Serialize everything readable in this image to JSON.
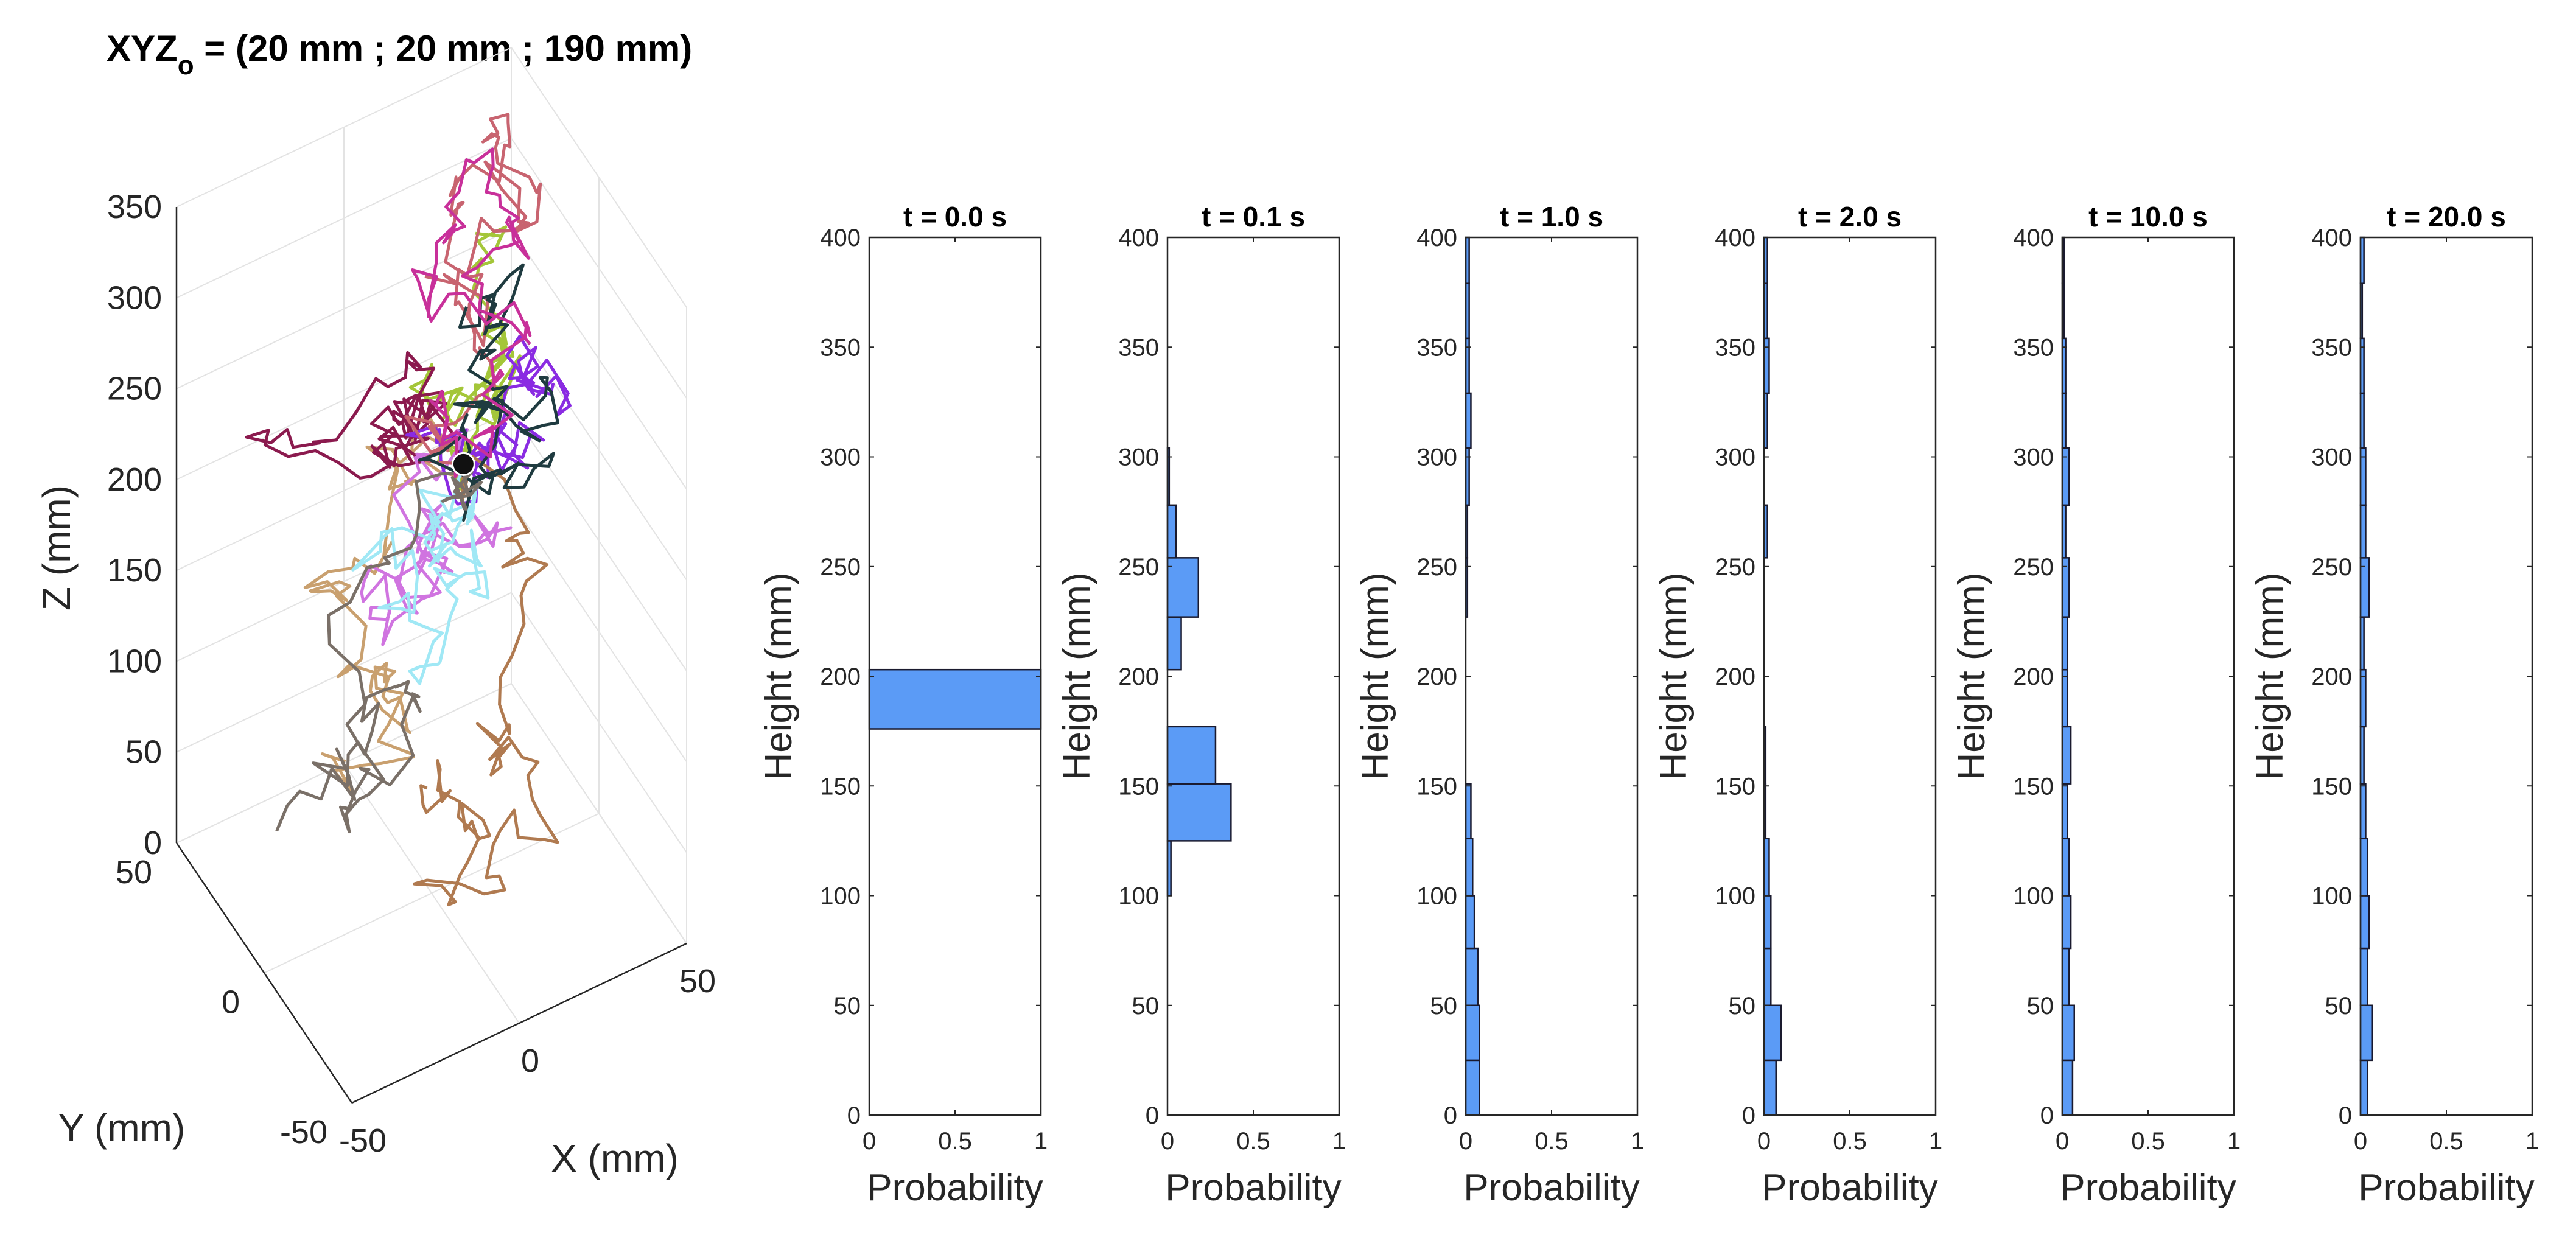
{
  "chart_data": [
    {
      "type": "scatter",
      "subtype": "3d-trajectories",
      "title_main": "XYZ",
      "title_sub": "o",
      "title_rest": " = (20 mm ; 20 mm ; 190 mm)",
      "xlabel": "X (mm)",
      "ylabel": "Y (mm)",
      "zlabel": "Z (mm)",
      "xlim": [
        -50,
        50
      ],
      "ylim": [
        -50,
        50
      ],
      "zlim": [
        0,
        350
      ],
      "x_ticks": [
        "-50",
        "0",
        "50"
      ],
      "y_ticks": [
        "-50",
        "0",
        "50"
      ],
      "z_ticks": [
        "0",
        "50",
        "100",
        "150",
        "200",
        "250",
        "300",
        "350"
      ],
      "origin": {
        "x": 20,
        "y": 20,
        "z": 190
      },
      "trajectories": [
        {
          "color": "#a4c639"
        },
        {
          "color": "#c9a06f"
        },
        {
          "color": "#8b1a4e"
        },
        {
          "color": "#d074e0"
        },
        {
          "color": "#8a2be2"
        },
        {
          "color": "#a0e8f5"
        },
        {
          "color": "#c86470"
        },
        {
          "color": "#b07a50"
        },
        {
          "color": "#1f3b40"
        },
        {
          "color": "#7a7068"
        },
        {
          "color": "#c8309a"
        }
      ]
    },
    {
      "type": "bar",
      "orientation": "horizontal-histogram",
      "panels": [
        {
          "title": "t = 0.0 s",
          "bins": [
            [
              176,
              203,
              1.0
            ]
          ]
        },
        {
          "title": "t = 0.1 s",
          "bins": [
            [
              100,
              125,
              0.02
            ],
            [
              125,
              151,
              0.37
            ],
            [
              151,
              177,
              0.28
            ],
            [
              203,
              227,
              0.08
            ],
            [
              227,
              254,
              0.18
            ],
            [
              254,
              278,
              0.05
            ],
            [
              278,
              304,
              0.01
            ]
          ]
        },
        {
          "title": "t = 1.0 s",
          "bins": [
            [
              0,
              25,
              0.08
            ],
            [
              25,
              50,
              0.08
            ],
            [
              50,
              76,
              0.07
            ],
            [
              76,
              100,
              0.05
            ],
            [
              100,
              126,
              0.04
            ],
            [
              126,
              151,
              0.03
            ],
            [
              227,
              254,
              0.01
            ],
            [
              254,
              278,
              0.01
            ],
            [
              278,
              304,
              0.02
            ],
            [
              304,
              329,
              0.03
            ],
            [
              329,
              354,
              0.02
            ],
            [
              354,
              379,
              0.02
            ],
            [
              379,
              400,
              0.02
            ]
          ]
        },
        {
          "title": "t = 2.0 s",
          "bins": [
            [
              0,
              25,
              0.07
            ],
            [
              25,
              50,
              0.1
            ],
            [
              50,
              76,
              0.04
            ],
            [
              76,
              100,
              0.04
            ],
            [
              100,
              126,
              0.03
            ],
            [
              126,
              151,
              0.01
            ],
            [
              151,
              177,
              0.01
            ],
            [
              254,
              278,
              0.02
            ],
            [
              304,
              329,
              0.02
            ],
            [
              329,
              354,
              0.03
            ],
            [
              354,
              379,
              0.02
            ],
            [
              379,
              400,
              0.02
            ]
          ]
        },
        {
          "title": "t = 10.0 s",
          "bins": [
            [
              0,
              25,
              0.06
            ],
            [
              25,
              50,
              0.07
            ],
            [
              50,
              76,
              0.04
            ],
            [
              76,
              100,
              0.05
            ],
            [
              100,
              126,
              0.04
            ],
            [
              126,
              151,
              0.03
            ],
            [
              151,
              177,
              0.05
            ],
            [
              177,
              203,
              0.03
            ],
            [
              203,
              227,
              0.03
            ],
            [
              227,
              254,
              0.04
            ],
            [
              254,
              278,
              0.02
            ],
            [
              278,
              304,
              0.04
            ],
            [
              304,
              329,
              0.02
            ],
            [
              329,
              354,
              0.02
            ],
            [
              354,
              379,
              0.01
            ],
            [
              379,
              400,
              0.01
            ]
          ]
        },
        {
          "title": "t = 20.0 s",
          "bins": [
            [
              0,
              25,
              0.04
            ],
            [
              25,
              50,
              0.07
            ],
            [
              50,
              76,
              0.04
            ],
            [
              76,
              100,
              0.05
            ],
            [
              100,
              126,
              0.04
            ],
            [
              126,
              151,
              0.03
            ],
            [
              151,
              177,
              0.02
            ],
            [
              177,
              203,
              0.03
            ],
            [
              203,
              227,
              0.02
            ],
            [
              227,
              254,
              0.05
            ],
            [
              254,
              278,
              0.03
            ],
            [
              278,
              304,
              0.03
            ],
            [
              304,
              329,
              0.02
            ],
            [
              329,
              354,
              0.02
            ],
            [
              354,
              379,
              0.01
            ],
            [
              379,
              400,
              0.02
            ]
          ]
        }
      ],
      "xlabel": "Probability",
      "ylabel": "Height (mm)",
      "xlim": [
        0,
        1
      ],
      "ylim": [
        0,
        400
      ],
      "x_ticks": [
        0,
        0.5,
        1
      ],
      "x_tick_labels": [
        "0",
        "0.5",
        "1"
      ],
      "y_ticks": [
        0,
        50,
        100,
        150,
        200,
        250,
        300,
        350,
        400
      ],
      "bar_color": "#5b9bf6",
      "bar_edge_color": "#1a1a2e"
    }
  ]
}
